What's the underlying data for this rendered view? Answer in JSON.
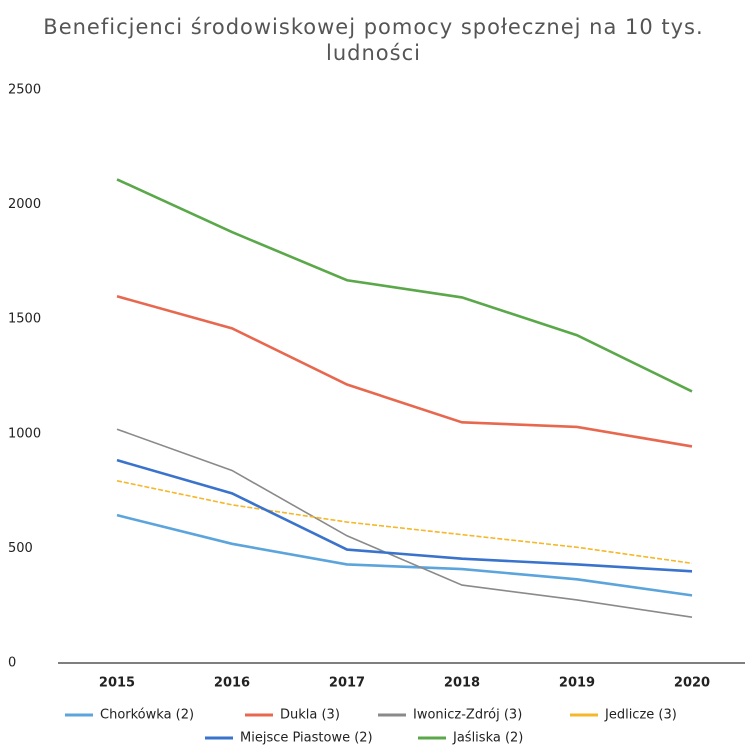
{
  "chart_data": {
    "type": "line",
    "title": "Beneficjenci środowiskowej pomocy społecznej na 10 tys. ludności",
    "categories": [
      "2015",
      "2016",
      "2017",
      "2018",
      "2019",
      "2020"
    ],
    "series": [
      {
        "name": "Chorkówka (2)",
        "color": "#5ba4dc",
        "values": [
          645,
          520,
          430,
          410,
          365,
          295
        ]
      },
      {
        "name": "Dukla (3)",
        "color": "#e8684f",
        "values": [
          1600,
          1460,
          1215,
          1050,
          1030,
          945
        ]
      },
      {
        "name": "Iwonicz-Zdrój (3)",
        "color": "#8a8a8a",
        "values": [
          1020,
          840,
          555,
          340,
          275,
          200
        ]
      },
      {
        "name": "Jedlicze (3)",
        "color": "#f5b72b",
        "values": [
          795,
          690,
          615,
          560,
          505,
          435
        ]
      },
      {
        "name": "Miejsce Piastowe (2)",
        "color": "#3a73cc",
        "values": [
          885,
          740,
          495,
          455,
          430,
          400
        ]
      },
      {
        "name": "Jaśliska (2)",
        "color": "#5aa84a",
        "values": [
          2110,
          1880,
          1670,
          1595,
          1430,
          1185
        ]
      }
    ],
    "ylim": [
      0,
      2500
    ],
    "yticks": [
      0,
      500,
      1000,
      1500,
      2000,
      2500
    ],
    "grid": false
  }
}
